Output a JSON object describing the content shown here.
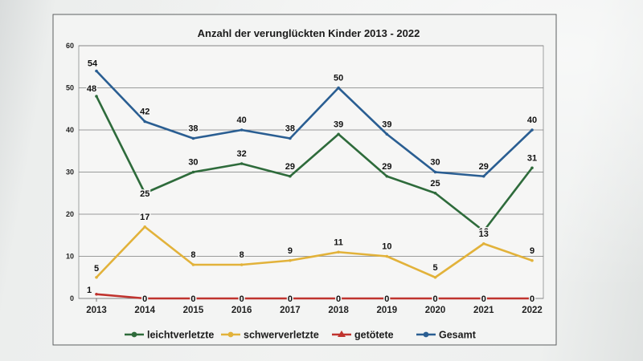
{
  "chart_data": {
    "type": "line",
    "title": "Anzahl der verunglückten Kinder 2013 - 2022",
    "categories": [
      "2013",
      "2014",
      "2015",
      "2016",
      "2017",
      "2018",
      "2019",
      "2020",
      "2021",
      "2022"
    ],
    "ylim": [
      0,
      60
    ],
    "yticks": [
      0,
      10,
      20,
      30,
      40,
      50,
      60
    ],
    "grid": true,
    "legend_position": "bottom",
    "series": [
      {
        "name": "leichtverletzte",
        "color": "#2e6b3b",
        "values": [
          48,
          25,
          30,
          32,
          29,
          39,
          29,
          25,
          16,
          31
        ]
      },
      {
        "name": "schwerverletzte",
        "color": "#e2b23a",
        "values": [
          5,
          17,
          8,
          8,
          9,
          11,
          10,
          5,
          13,
          9
        ]
      },
      {
        "name": "getötete",
        "color": "#c0332e",
        "values": [
          1,
          0,
          0,
          0,
          0,
          0,
          0,
          0,
          0,
          0
        ]
      },
      {
        "name": "Gesamt",
        "color": "#2a5e92",
        "values": [
          54,
          42,
          38,
          40,
          38,
          50,
          39,
          30,
          29,
          40
        ]
      }
    ]
  }
}
